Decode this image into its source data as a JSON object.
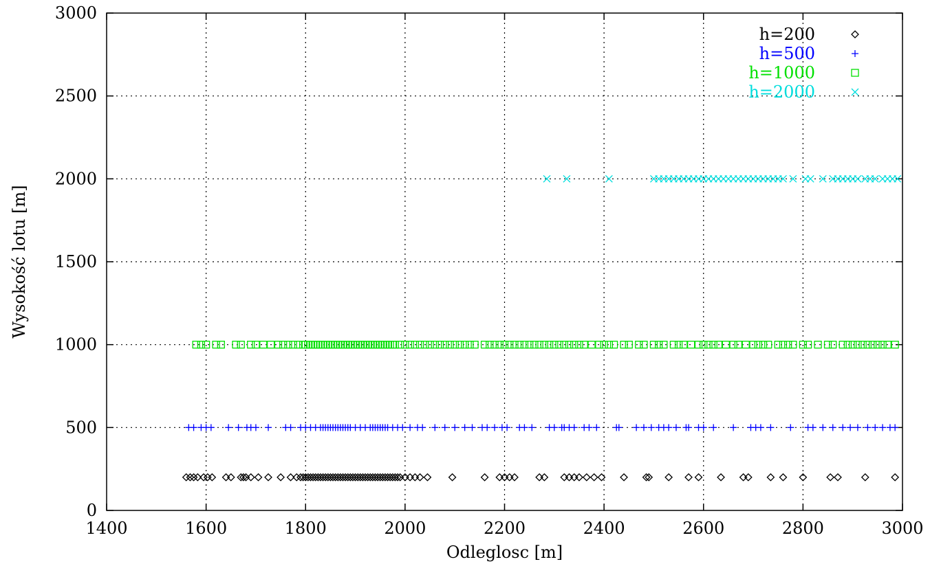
{
  "chart_data": {
    "type": "scatter",
    "title": "",
    "xlabel": "Odleglosc [m]",
    "ylabel": "Wysokość lotu [m]",
    "xlim": [
      1400,
      3000
    ],
    "ylim": [
      0,
      3000
    ],
    "x_ticks": [
      "1400",
      "1600",
      "1800",
      "2000",
      "2200",
      "2400",
      "2600",
      "2800",
      "3000"
    ],
    "y_ticks": [
      "0",
      "500",
      "1000",
      "1500",
      "2000",
      "2500",
      "3000"
    ],
    "grid": true,
    "legend_position": "top-right",
    "series": [
      {
        "name": "h=200",
        "color": "#000000",
        "marker": "diamond",
        "y": 200,
        "x": [
          1560,
          1568,
          1575,
          1583,
          1595,
          1603,
          1612,
          1640,
          1650,
          1670,
          1675,
          1680,
          1690,
          1705,
          1725,
          1750,
          1770,
          1782,
          1790,
          1795,
          1800,
          1805,
          1810,
          1815,
          1820,
          1825,
          1830,
          1835,
          1840,
          1845,
          1850,
          1855,
          1860,
          1865,
          1870,
          1875,
          1880,
          1885,
          1890,
          1895,
          1900,
          1905,
          1910,
          1915,
          1920,
          1925,
          1930,
          1935,
          1940,
          1945,
          1950,
          1955,
          1960,
          1965,
          1970,
          1975,
          1980,
          1985,
          1990,
          2000,
          2010,
          2020,
          2030,
          2045,
          2095,
          2160,
          2190,
          2200,
          2210,
          2220,
          2270,
          2280,
          2320,
          2330,
          2340,
          2350,
          2365,
          2380,
          2395,
          2440,
          2485,
          2490,
          2530,
          2570,
          2590,
          2635,
          2680,
          2690,
          2735,
          2760,
          2800,
          2855,
          2870,
          2925,
          2985
        ]
      },
      {
        "name": "h=500",
        "color": "#0000ff",
        "marker": "plus",
        "y": 500,
        "x": [
          1565,
          1575,
          1590,
          1600,
          1610,
          1645,
          1665,
          1682,
          1690,
          1700,
          1725,
          1760,
          1770,
          1790,
          1800,
          1810,
          1820,
          1830,
          1835,
          1840,
          1845,
          1850,
          1855,
          1860,
          1865,
          1870,
          1875,
          1880,
          1885,
          1890,
          1900,
          1910,
          1920,
          1930,
          1935,
          1940,
          1945,
          1950,
          1955,
          1960,
          1965,
          1975,
          1985,
          1995,
          2010,
          2025,
          2035,
          2060,
          2080,
          2100,
          2120,
          2135,
          2155,
          2165,
          2180,
          2195,
          2205,
          2230,
          2240,
          2255,
          2290,
          2300,
          2315,
          2320,
          2330,
          2340,
          2360,
          2370,
          2385,
          2425,
          2430,
          2465,
          2480,
          2495,
          2510,
          2520,
          2530,
          2545,
          2565,
          2570,
          2590,
          2600,
          2620,
          2660,
          2695,
          2705,
          2715,
          2735,
          2775,
          2810,
          2820,
          2840,
          2860,
          2880,
          2895,
          2910,
          2930,
          2945,
          2960,
          2975,
          2985
        ]
      },
      {
        "name": "h=1000",
        "color": "#00e000",
        "marker": "square",
        "y": 1000,
        "x": [
          1580,
          1590,
          1600,
          1620,
          1630,
          1660,
          1670,
          1690,
          1700,
          1715,
          1730,
          1745,
          1755,
          1765,
          1775,
          1785,
          1795,
          1800,
          1805,
          1810,
          1815,
          1820,
          1825,
          1830,
          1835,
          1840,
          1845,
          1850,
          1855,
          1860,
          1865,
          1870,
          1875,
          1880,
          1885,
          1890,
          1895,
          1900,
          1905,
          1910,
          1915,
          1920,
          1925,
          1930,
          1935,
          1940,
          1945,
          1950,
          1955,
          1960,
          1965,
          1970,
          1975,
          1980,
          1990,
          2000,
          2010,
          2020,
          2030,
          2040,
          2050,
          2060,
          2070,
          2080,
          2090,
          2100,
          2110,
          2120,
          2130,
          2140,
          2160,
          2170,
          2180,
          2190,
          2200,
          2210,
          2220,
          2230,
          2240,
          2250,
          2260,
          2270,
          2280,
          2290,
          2300,
          2310,
          2320,
          2330,
          2340,
          2350,
          2360,
          2375,
          2390,
          2400,
          2410,
          2420,
          2440,
          2450,
          2470,
          2480,
          2500,
          2510,
          2520,
          2540,
          2550,
          2560,
          2575,
          2590,
          2600,
          2610,
          2620,
          2630,
          2645,
          2660,
          2670,
          2685,
          2700,
          2710,
          2720,
          2730,
          2750,
          2760,
          2770,
          2780,
          2800,
          2810,
          2830,
          2850,
          2860,
          2880,
          2890,
          2900,
          2910,
          2920,
          2930,
          2940,
          2950,
          2960,
          2970,
          2985
        ]
      },
      {
        "name": "h=2000",
        "color": "#00dddd",
        "marker": "cross",
        "y": 2000,
        "x": [
          2285,
          2325,
          2410,
          2500,
          2510,
          2520,
          2530,
          2540,
          2550,
          2560,
          2570,
          2580,
          2590,
          2600,
          2610,
          2620,
          2630,
          2640,
          2650,
          2660,
          2670,
          2680,
          2690,
          2700,
          2710,
          2720,
          2730,
          2740,
          2750,
          2760,
          2780,
          2805,
          2815,
          2840,
          2860,
          2870,
          2880,
          2890,
          2900,
          2910,
          2925,
          2935,
          2945,
          2960,
          2970,
          2980,
          2990
        ]
      }
    ]
  }
}
